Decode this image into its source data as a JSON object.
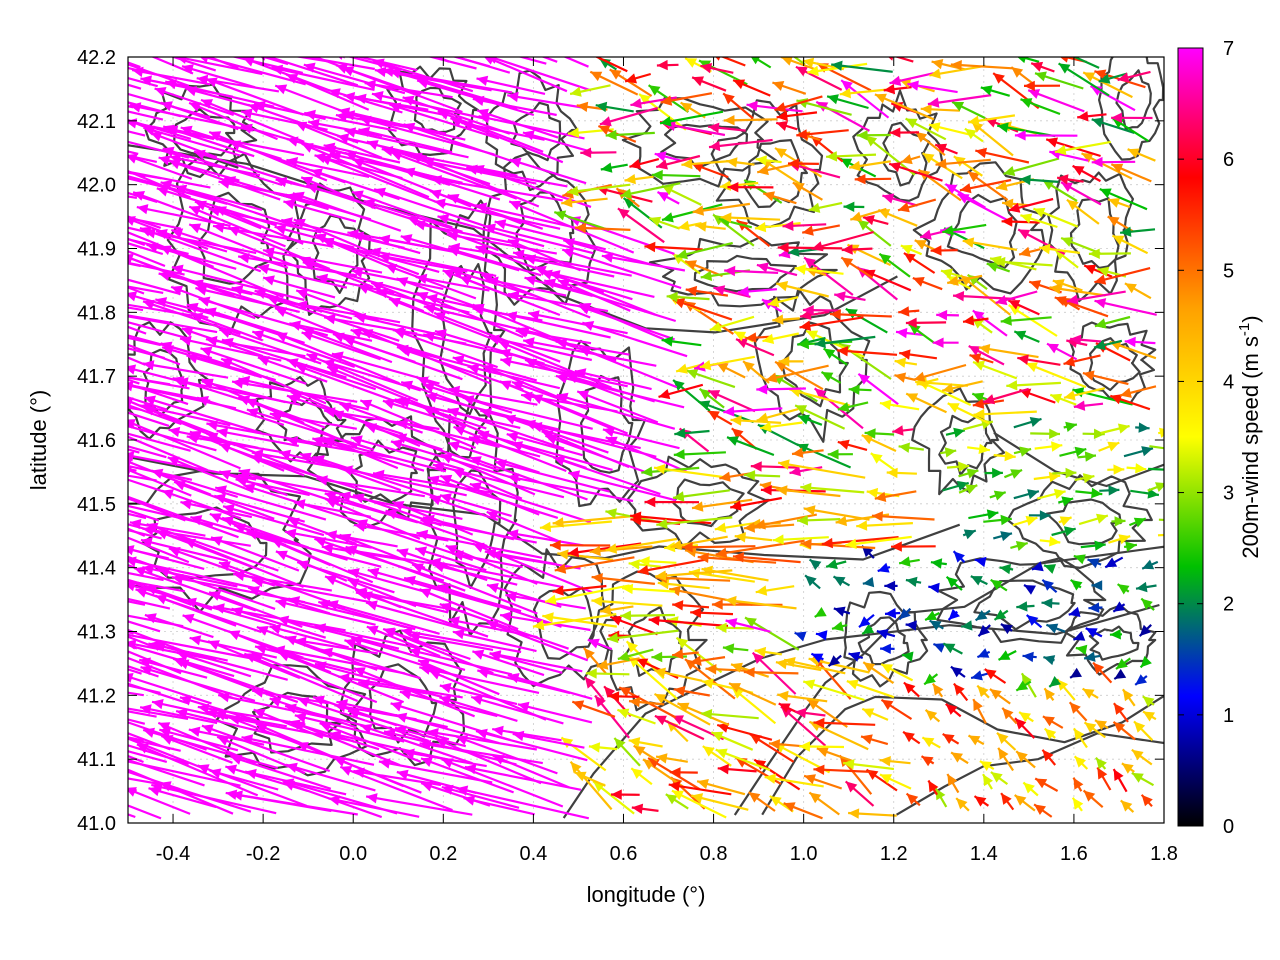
{
  "chart_data": {
    "type": "vector-field",
    "xlabel": "longitude (°)",
    "ylabel": "latitude (°)",
    "xlim": [
      -0.5,
      1.8
    ],
    "ylim": [
      41.0,
      42.2
    ],
    "xticks": [
      "-0.4",
      "-0.2",
      "0.0",
      "0.2",
      "0.4",
      "0.6",
      "0.8",
      "1.0",
      "1.2",
      "1.4",
      "1.6",
      "1.8"
    ],
    "yticks": [
      "41.0",
      "41.1",
      "41.2",
      "41.3",
      "41.4",
      "41.5",
      "41.6",
      "41.7",
      "41.8",
      "41.9",
      "42.0",
      "42.1",
      "42.2"
    ],
    "colorbar": {
      "label_main": "200m-wind speed (m s",
      "label_sup": "-1",
      "label_end": ")",
      "range": [
        0,
        7
      ],
      "ticks": [
        "0",
        "1",
        "2",
        "3",
        "4",
        "5",
        "6",
        "7"
      ],
      "palette": [
        "#000000",
        "#0000ff",
        "#00c000",
        "#ffff00",
        "#ffa000",
        "#ff0000",
        "#ff00ff"
      ]
    },
    "wind_regions": [
      {
        "region": "west of 0.6°E",
        "dominant_speed": 7,
        "direction": "from east-southeast, pointing west-northwest"
      },
      {
        "region": "0.6–1.0°E, 41.0–41.4°N",
        "speed_range": [
          3,
          6
        ],
        "direction": "westward to northwestward"
      },
      {
        "region": "1.0–1.8°E, 41.2–41.4°N",
        "speed_range": [
          0.5,
          2.5
        ],
        "direction": "variable, weak"
      },
      {
        "region": "1.3–1.8°E, 41.0–41.2°N",
        "speed_range": [
          3,
          6
        ],
        "direction": "northwestward"
      },
      {
        "region": "1.3–1.8°E, 41.4–41.6°N",
        "speed_range": [
          2,
          4
        ],
        "direction": "eastward"
      },
      {
        "region": "0.5–1.8°E, 41.8–42.2°N",
        "speed_range": [
          2,
          7
        ],
        "direction": "westward, mixed"
      }
    ],
    "contours": "topography contours (dark grey)",
    "grid": true
  }
}
